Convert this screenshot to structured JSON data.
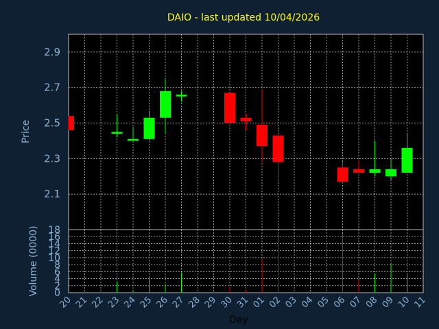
{
  "chart_data": {
    "type": "candlestick",
    "title": "DAIO - last updated 10/04/2026",
    "xlabel": "Day",
    "price_panel": {
      "ylabel": "Price",
      "ylim": [
        1.9,
        3.0
      ],
      "yticks": [
        "2.1",
        "2.3",
        "2.5",
        "2.7",
        "2.9"
      ]
    },
    "volume_panel": {
      "ylabel": "Volume (0000)",
      "ylim": [
        0,
        18
      ],
      "yticks": [
        "0",
        "2",
        "4",
        "6",
        "8",
        "10",
        "12",
        "14",
        "16",
        "18"
      ]
    },
    "categories": [
      "20",
      "21",
      "22",
      "23",
      "24",
      "25",
      "26",
      "27",
      "28",
      "29",
      "30",
      "31",
      "01",
      "02",
      "03",
      "04",
      "05",
      "06",
      "07",
      "08",
      "09",
      "10",
      "11"
    ],
    "colors": {
      "up": "#00ff00",
      "down": "#ff0000",
      "background": "#0f2033",
      "plot": "#000000",
      "grid": "#bbbbbb",
      "title": "#ffff00",
      "text": "#8fb0cf"
    },
    "candles": [
      {
        "day": "20",
        "open": 2.54,
        "high": 2.54,
        "low": 2.46,
        "close": 2.46,
        "volume": 0
      },
      {
        "day": "23",
        "open": 2.44,
        "high": 2.55,
        "low": 2.42,
        "close": 2.45,
        "volume": 3.2
      },
      {
        "day": "24",
        "open": 2.4,
        "high": 2.48,
        "low": 2.4,
        "close": 2.41,
        "volume": 0.5
      },
      {
        "day": "25",
        "open": 2.41,
        "high": 2.57,
        "low": 2.41,
        "close": 2.53,
        "volume": 3.8
      },
      {
        "day": "26",
        "open": 2.53,
        "high": 2.75,
        "low": 2.44,
        "close": 2.68,
        "volume": 2.5
      },
      {
        "day": "27",
        "open": 2.65,
        "high": 2.68,
        "low": 2.62,
        "close": 2.66,
        "volume": 5.8
      },
      {
        "day": "30",
        "open": 2.67,
        "high": 2.67,
        "low": 2.5,
        "close": 2.5,
        "volume": 1.5
      },
      {
        "day": "31",
        "open": 2.53,
        "high": 2.55,
        "low": 2.46,
        "close": 2.51,
        "volume": 0.5
      },
      {
        "day": "01",
        "open": 2.49,
        "high": 2.69,
        "low": 2.28,
        "close": 2.37,
        "volume": 9.7
      },
      {
        "day": "02",
        "open": 2.43,
        "high": 2.43,
        "low": 2.19,
        "close": 2.28,
        "volume": 15.8
      },
      {
        "day": "06",
        "open": 2.25,
        "high": 2.28,
        "low": 2.16,
        "close": 2.17,
        "volume": 16.8
      },
      {
        "day": "07",
        "open": 2.24,
        "high": 2.29,
        "low": 2.22,
        "close": 2.22,
        "volume": 3.8
      },
      {
        "day": "08",
        "open": 2.22,
        "high": 2.4,
        "low": 2.2,
        "close": 2.24,
        "volume": 5.5
      },
      {
        "day": "09",
        "open": 2.2,
        "high": 2.3,
        "low": 2.18,
        "close": 2.24,
        "volume": 8.3
      },
      {
        "day": "10",
        "open": 2.22,
        "high": 2.44,
        "low": 2.22,
        "close": 2.36,
        "volume": 5.3
      }
    ]
  }
}
